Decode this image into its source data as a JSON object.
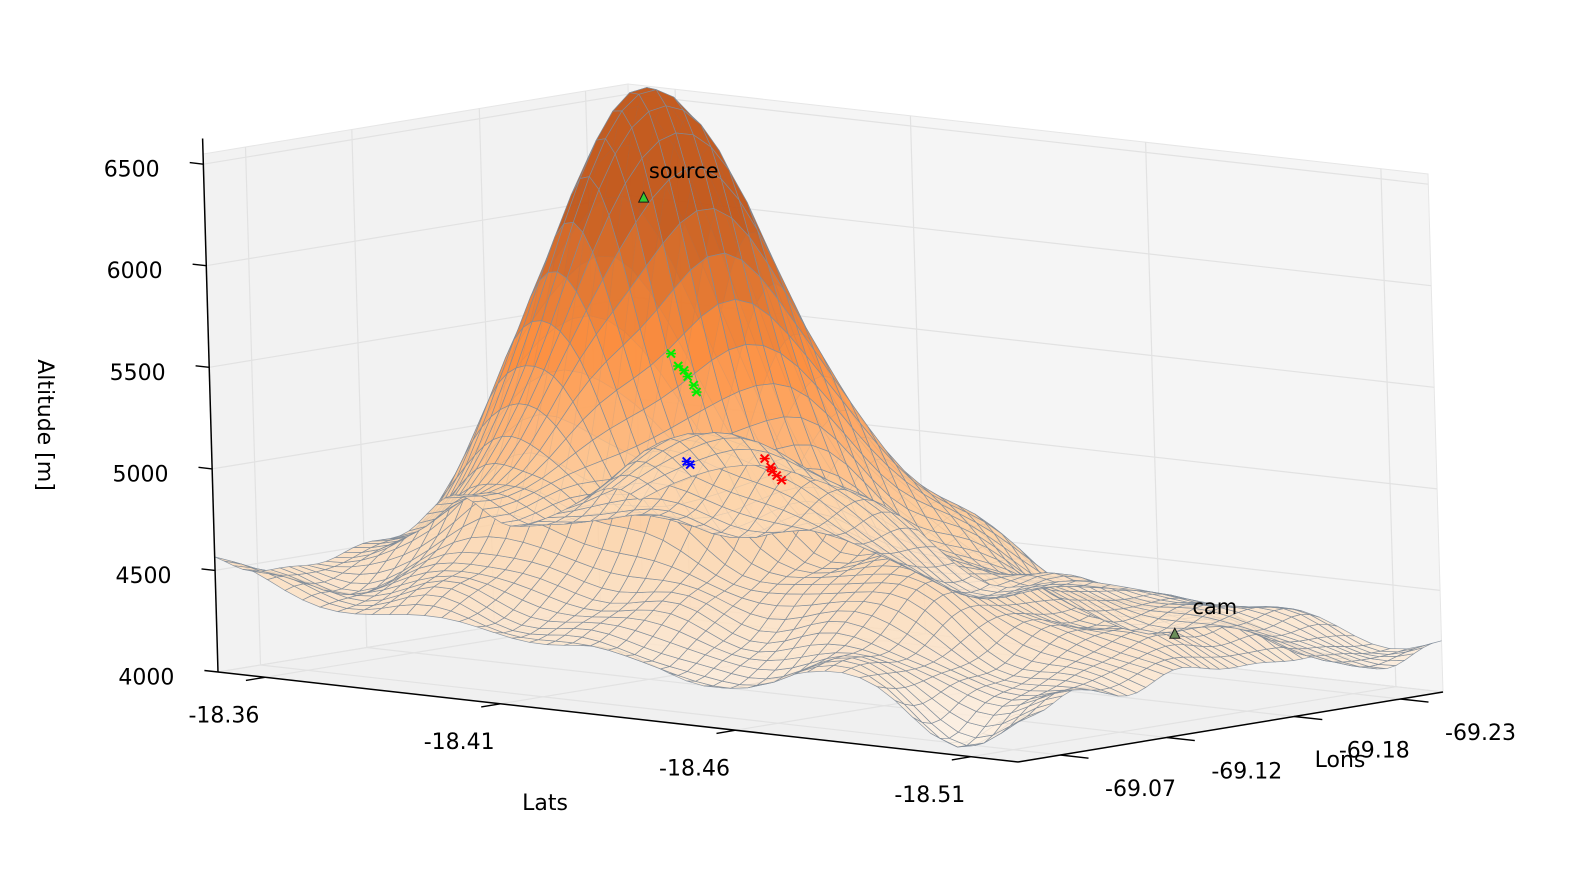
{
  "chart_data": {
    "type": "surface",
    "title": "",
    "xlabel": "Lats",
    "ylabel": "Lons",
    "zlabel": "Altitude [m]",
    "lat_ticks": [
      "-18.36",
      "-18.41",
      "-18.46",
      "-18.51"
    ],
    "lon_ticks": [
      "-69.07",
      "-69.12",
      "-69.18",
      "-69.23"
    ],
    "z_ticks": [
      "4000",
      "4500",
      "5000",
      "5500",
      "6000",
      "6500"
    ],
    "lat_range": [
      -18.35,
      -18.52
    ],
    "lon_range": [
      -69.05,
      -69.25
    ],
    "z_range": [
      4000,
      6550
    ],
    "surface_colormap": [
      "#fdf1e4",
      "#fdd0a2",
      "#fd8d3c",
      "#c2571a"
    ],
    "grid_line_color": "#7f8c99",
    "peak": {
      "lat": -18.405,
      "lon": -69.135,
      "alt": 6250
    },
    "annotations": [
      {
        "label": "source",
        "lat": -18.405,
        "lon": -69.135,
        "alt": 6330,
        "color": "#33cc33"
      },
      {
        "label": "cam",
        "lat": -18.47,
        "lon": -69.235,
        "alt": 4180,
        "color": "#6b8e5a"
      }
    ],
    "point_clusters": [
      {
        "color": "#00ee00",
        "points": [
          [
            -18.4135,
            -69.127,
            5600
          ],
          [
            -18.4145,
            -69.128,
            5540
          ],
          [
            -18.416,
            -69.129,
            5490
          ],
          [
            -18.417,
            -69.1295,
            5450
          ],
          [
            -18.4155,
            -69.1285,
            5520
          ],
          [
            -18.418,
            -69.1285,
            5420
          ]
        ]
      },
      {
        "color": "#0000ff",
        "points": [
          [
            -18.423,
            -69.112,
            5120
          ],
          [
            -18.4235,
            -69.1125,
            5105
          ]
        ]
      },
      {
        "color": "#ff0000",
        "points": [
          [
            -18.426,
            -69.142,
            5090
          ],
          [
            -18.427,
            -69.1425,
            5050
          ],
          [
            -18.428,
            -69.143,
            5010
          ],
          [
            -18.429,
            -69.143,
            4990
          ],
          [
            -18.4275,
            -69.142,
            5030
          ]
        ]
      }
    ],
    "grid": true
  }
}
